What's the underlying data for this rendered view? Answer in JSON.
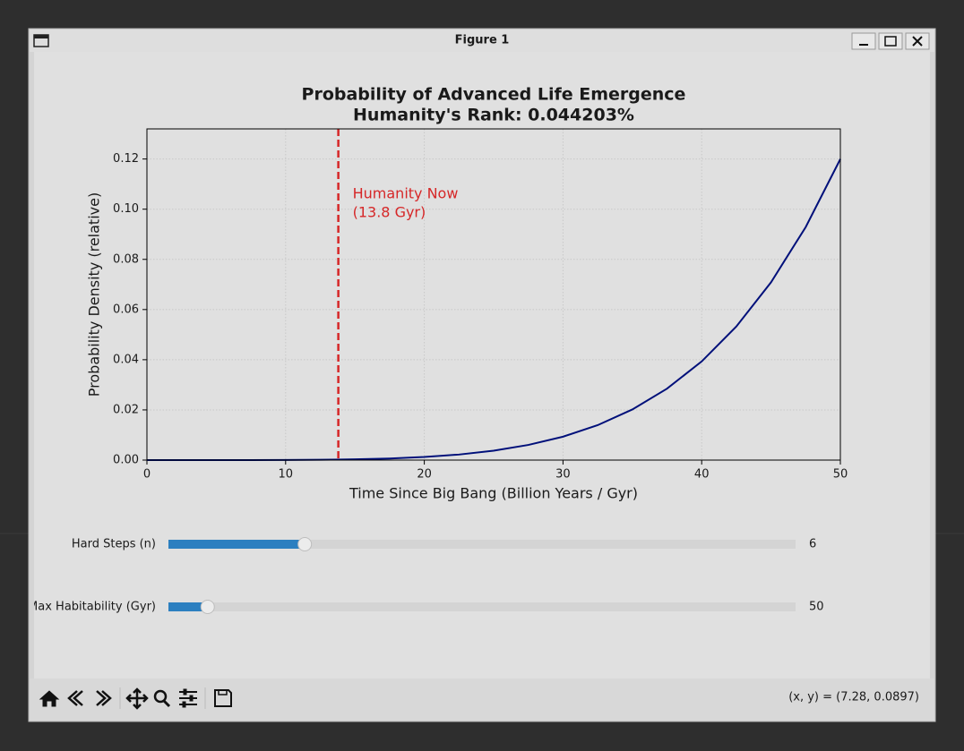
{
  "window": {
    "title": "Figure 1",
    "status": "(x, y) = (7.28, 0.0897)"
  },
  "chart_data": {
    "type": "line",
    "title": "Probability of Advanced Life Emergence",
    "subtitle": "Humanity's Rank: 0.044203%",
    "x_label": "Time Since Big Bang (Billion Years / Gyr)",
    "y_label": "Probability Density (relative)",
    "x": [
      0,
      2.5,
      5,
      7.5,
      10,
      12.5,
      15,
      17.5,
      20,
      22.5,
      25,
      27.5,
      30,
      32.5,
      35,
      37.5,
      40,
      42.5,
      45,
      47.5,
      50
    ],
    "values": [
      0,
      4e-08,
      1.2e-06,
      9.1e-06,
      3.84e-05,
      0.000117,
      0.000292,
      0.00063,
      0.00123,
      0.00221,
      0.00375,
      0.00604,
      0.00933,
      0.01392,
      0.02017,
      0.02848,
      0.03932,
      0.05325,
      0.07086,
      0.09285,
      0.12
    ],
    "color": "#00107a",
    "vline": {
      "x": 13.8,
      "color": "#d62728",
      "annotation": [
        "Humanity Now",
        "(13.8 Gyr)"
      ]
    },
    "xlim": [
      0,
      50
    ],
    "xticks": [
      0,
      10,
      20,
      30,
      40,
      50
    ],
    "ylim": [
      0,
      0.132
    ],
    "yticks": [
      {
        "value": 0,
        "label": "0.00"
      },
      0.02,
      0.04,
      0.06,
      0.08,
      {
        "value": 0.1,
        "label": "0.10"
      },
      0.12
    ],
    "grid": true
  },
  "sliders": [
    {
      "label": "Hard Steps (n)",
      "value": 6,
      "min": 1,
      "max": 24
    },
    {
      "label": "Max Habitability (Gyr)",
      "value": 50,
      "min": 0,
      "max": 800
    }
  ]
}
